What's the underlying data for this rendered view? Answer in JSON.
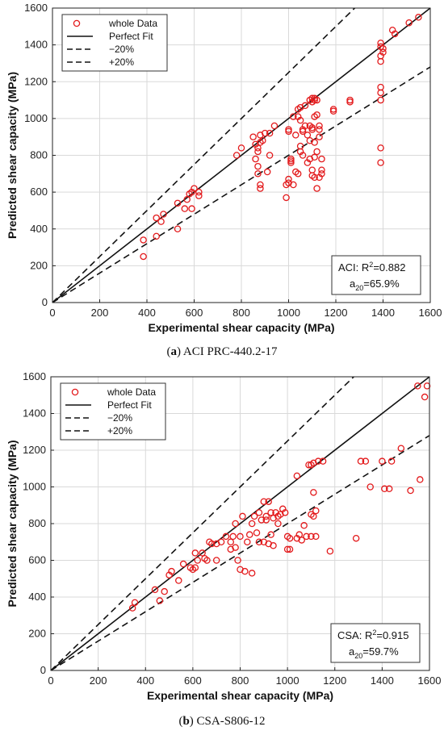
{
  "chart_data": [
    {
      "type": "scatter",
      "caption_letter": "a",
      "caption_text": "ACI PRC-440.2-17",
      "xlabel": "Experimental shear capacity (MPa)",
      "ylabel": "Predicted shear capacity (MPa)",
      "xlim": [
        0,
        1600
      ],
      "ylim": [
        0,
        1600
      ],
      "xticks": [
        0,
        200,
        400,
        600,
        800,
        1000,
        1200,
        1400,
        1600
      ],
      "yticks": [
        0,
        200,
        400,
        600,
        800,
        1000,
        1200,
        1400,
        1600
      ],
      "grid": true,
      "legend_position": "top-left",
      "legend": [
        "whole Data",
        "Perfect Fit",
        "−20%",
        "+20%"
      ],
      "stat_prefix": "ACI: R",
      "stat_sup": "2",
      "stat_value": "=0.882",
      "a20_label": "a",
      "a20_sub": "20",
      "a20_value": "=65.9%",
      "colors": {
        "points": "#e31a1c",
        "lines": "#111111",
        "grid": "#d9d9d9"
      },
      "series": [
        {
          "name": "whole Data",
          "x": [
            385,
            385,
            440,
            440,
            460,
            470,
            530,
            530,
            560,
            570,
            580,
            590,
            590,
            600,
            620,
            620,
            780,
            800,
            850,
            860,
            860,
            870,
            870,
            870,
            870,
            880,
            880,
            880,
            880,
            890,
            900,
            910,
            920,
            920,
            940,
            990,
            990,
            1000,
            1000,
            1000,
            1000,
            1010,
            1010,
            1010,
            1020,
            1020,
            1030,
            1030,
            1040,
            1040,
            1040,
            1050,
            1050,
            1050,
            1050,
            1060,
            1060,
            1060,
            1070,
            1070,
            1080,
            1080,
            1090,
            1090,
            1090,
            1090,
            1100,
            1100,
            1100,
            1100,
            1100,
            1100,
            1110,
            1110,
            1110,
            1110,
            1110,
            1110,
            1120,
            1120,
            1120,
            1120,
            1130,
            1130,
            1130,
            1130,
            1140,
            1140,
            1140,
            1190,
            1190,
            1260,
            1260,
            1390,
            1390,
            1390,
            1390,
            1390,
            1390,
            1390,
            1390,
            1390,
            1400,
            1400,
            1440,
            1450,
            1510,
            1550
          ],
          "y": [
            250,
            340,
            360,
            460,
            440,
            480,
            400,
            540,
            510,
            560,
            590,
            510,
            600,
            620,
            600,
            580,
            800,
            840,
            900,
            860,
            780,
            840,
            820,
            740,
            700,
            910,
            870,
            640,
            620,
            880,
            920,
            710,
            920,
            800,
            960,
            570,
            640,
            930,
            940,
            670,
            650,
            780,
            760,
            770,
            1010,
            640,
            910,
            710,
            1050,
            1010,
            700,
            1060,
            990,
            850,
            820,
            940,
            930,
            800,
            1070,
            960,
            910,
            760,
            1100,
            960,
            880,
            780,
            1110,
            1090,
            950,
            940,
            720,
            690,
            1110,
            1100,
            1010,
            870,
            790,
            680,
            1100,
            1020,
            820,
            620,
            960,
            940,
            900,
            680,
            780,
            720,
            700,
            1050,
            1040,
            1100,
            1090,
            1410,
            1390,
            1340,
            1310,
            1170,
            1140,
            1100,
            840,
            760,
            1380,
            1360,
            1480,
            1460,
            1520,
            1550
          ]
        }
      ]
    },
    {
      "type": "scatter",
      "caption_letter": "b",
      "caption_text": "CSA-S806-12",
      "xlabel": "Experimental shear capacity (MPa)",
      "ylabel": "Predicted shear capacity (MPa)",
      "xlim": [
        0,
        1600
      ],
      "ylim": [
        0,
        1600
      ],
      "xticks": [
        0,
        200,
        400,
        600,
        800,
        1000,
        1200,
        1400,
        1600
      ],
      "yticks": [
        0,
        200,
        400,
        600,
        800,
        1000,
        1200,
        1400,
        1600
      ],
      "grid": true,
      "legend_position": "top-left",
      "legend": [
        "whole Data",
        "Perfect Fit",
        "−20%",
        "+20%"
      ],
      "stat_prefix": "CSA: R",
      "stat_sup": "2",
      "stat_value": "=0.915",
      "a20_label": "a",
      "a20_sub": "20",
      "a20_value": "=59.7%",
      "colors": {
        "points": "#e31a1c",
        "lines": "#111111",
        "grid": "#d9d9d9"
      },
      "series": [
        {
          "name": "whole Data",
          "x": [
            345,
            355,
            440,
            460,
            480,
            500,
            510,
            540,
            560,
            590,
            600,
            610,
            610,
            620,
            640,
            650,
            660,
            670,
            680,
            700,
            700,
            720,
            740,
            760,
            760,
            770,
            780,
            780,
            790,
            800,
            800,
            810,
            820,
            830,
            840,
            850,
            850,
            860,
            870,
            880,
            880,
            890,
            900,
            900,
            910,
            910,
            920,
            920,
            930,
            930,
            940,
            940,
            950,
            960,
            960,
            970,
            980,
            990,
            1000,
            1000,
            1010,
            1010,
            1040,
            1040,
            1050,
            1060,
            1070,
            1080,
            1090,
            1100,
            1100,
            1100,
            1110,
            1110,
            1110,
            1120,
            1120,
            1130,
            1150,
            1180,
            1290,
            1310,
            1330,
            1350,
            1400,
            1410,
            1430,
            1440,
            1480,
            1520,
            1550,
            1560,
            1580,
            1590
          ],
          "y": [
            340,
            370,
            440,
            380,
            430,
            520,
            540,
            490,
            580,
            560,
            550,
            560,
            640,
            600,
            640,
            610,
            600,
            700,
            690,
            690,
            600,
            700,
            730,
            700,
            660,
            730,
            800,
            670,
            600,
            730,
            550,
            840,
            540,
            700,
            740,
            800,
            530,
            840,
            750,
            860,
            700,
            820,
            920,
            700,
            840,
            820,
            920,
            690,
            860,
            740,
            830,
            680,
            860,
            840,
            800,
            850,
            880,
            860,
            730,
            660,
            660,
            720,
            1060,
            720,
            740,
            710,
            790,
            730,
            1120,
            1120,
            850,
            730,
            1130,
            970,
            840,
            870,
            730,
            1140,
            1140,
            650,
            720,
            1140,
            1140,
            1000,
            1140,
            990,
            990,
            1140,
            1210,
            980,
            1550,
            1040,
            1490,
            1550
          ]
        }
      ]
    }
  ]
}
